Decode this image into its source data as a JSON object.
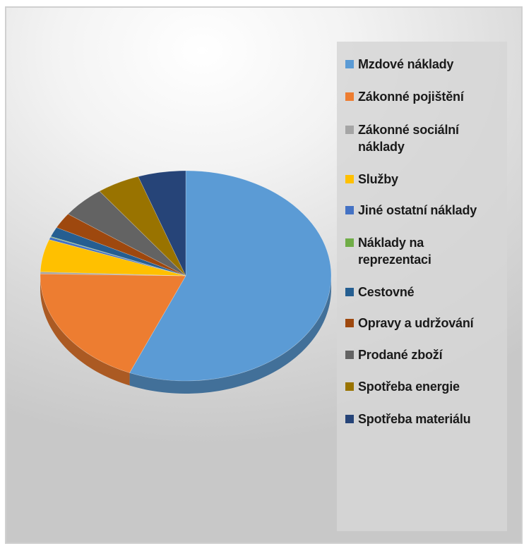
{
  "chart_data": {
    "type": "pie",
    "title": "",
    "legend_position": "right",
    "slices": [
      {
        "label": "Mzdové náklady",
        "value": 56.3,
        "color": "#5b9bd5"
      },
      {
        "label": "Zákonné pojištění",
        "value": 19.0,
        "color": "#ed7d31"
      },
      {
        "label": "Zákonné sociální\nnáklady",
        "value": 0.3,
        "color": "#a5a5a5"
      },
      {
        "label": "Služby",
        "value": 5.0,
        "color": "#ffc000"
      },
      {
        "label": "Jiné ostatní náklady",
        "value": 0.4,
        "color": "#4472c4"
      },
      {
        "label": "Náklady na\nreprezentaci",
        "value": 0.1,
        "color": "#70ad47"
      },
      {
        "label": "Cestovné",
        "value": 1.5,
        "color": "#255e91"
      },
      {
        "label": "Opravy a udržování",
        "value": 2.4,
        "color": "#9e480e"
      },
      {
        "label": "Prodané zboží",
        "value": 4.9,
        "color": "#636363"
      },
      {
        "label": "Spotřeba energie",
        "value": 4.8,
        "color": "#997300"
      },
      {
        "label": "Spotřeba materiálu",
        "value": 5.3,
        "color": "#264478"
      }
    ]
  }
}
